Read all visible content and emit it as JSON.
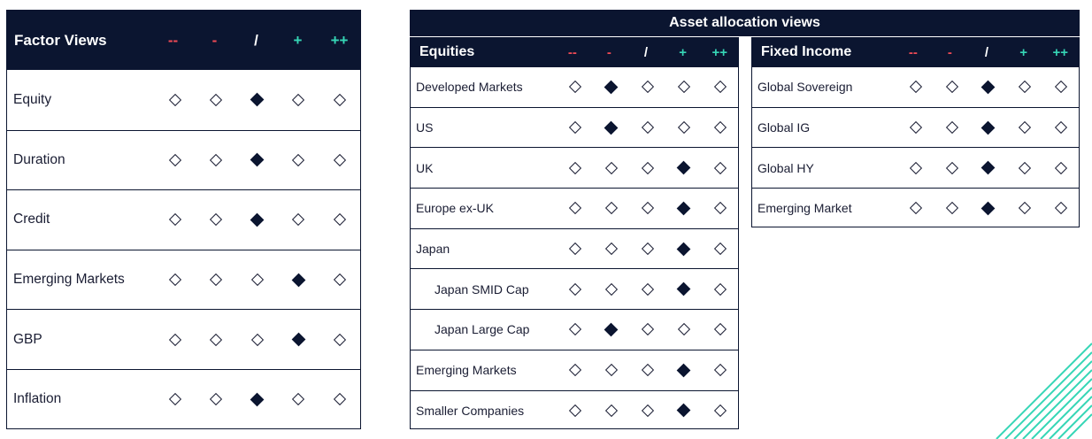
{
  "scale": [
    "--",
    "-",
    "/",
    "+",
    "++"
  ],
  "factor_views": {
    "title": "Factor Views",
    "rows": [
      {
        "label": "Equity",
        "selected": 2
      },
      {
        "label": "Duration",
        "selected": 2
      },
      {
        "label": "Credit",
        "selected": 2
      },
      {
        "label": "Emerging Markets",
        "selected": 3
      },
      {
        "label": "GBP",
        "selected": 3
      },
      {
        "label": "Inflation",
        "selected": 2
      }
    ]
  },
  "asset_allocation": {
    "title": "Asset allocation views",
    "equities": {
      "title": "Equities",
      "rows": [
        {
          "label": "Developed Markets",
          "selected": 1
        },
        {
          "label": "US",
          "selected": 1
        },
        {
          "label": "UK",
          "selected": 3
        },
        {
          "label": "Europe ex-UK",
          "selected": 3
        },
        {
          "label": "Japan",
          "selected": 3
        },
        {
          "label": "Japan SMID Cap",
          "selected": 3,
          "sub": true
        },
        {
          "label": "Japan Large Cap",
          "selected": 1,
          "sub": true
        },
        {
          "label": "Emerging Markets",
          "selected": 3
        },
        {
          "label": "Smaller Companies",
          "selected": 3
        }
      ]
    },
    "fixed_income": {
      "title": "Fixed Income",
      "rows": [
        {
          "label": "Global Sovereign",
          "selected": 2
        },
        {
          "label": "Global IG",
          "selected": 2
        },
        {
          "label": "Global HY",
          "selected": 2
        },
        {
          "label": "Emerging Market",
          "selected": 2
        }
      ]
    }
  },
  "colors": {
    "navy": "#0b1530",
    "negative": "#f04a55",
    "positive": "#36d6b6",
    "accent_lines": "#36d6b6"
  }
}
